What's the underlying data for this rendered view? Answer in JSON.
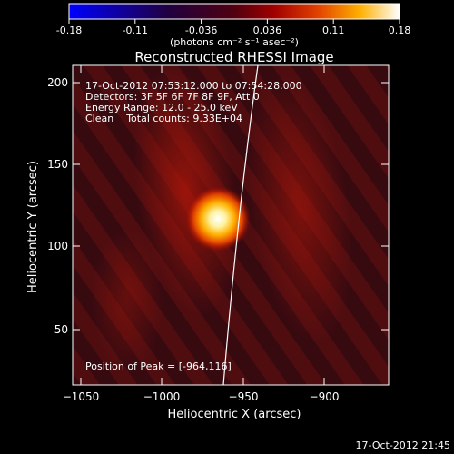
{
  "colorbar": {
    "ticks": [
      "-0.18",
      "-0.11",
      "-0.036",
      "0.036",
      "0.11",
      "0.18"
    ],
    "unit_label": "(photons cm⁻² s⁻¹ asec⁻²)"
  },
  "title": "Reconstructed RHESSI Image",
  "info": {
    "line1": "17-Oct-2012 07:53:12.000 to 07:54:28.000",
    "line2": "Detectors: 3F 5F 6F 7F 8F 9F, Att 0",
    "line3": "Energy Range: 12.0 - 25.0 keV",
    "line4": "Clean    Total counts: 9.33E+04"
  },
  "peak_label": "Position of Peak = [-964,116]",
  "axes": {
    "xlabel": "Heliocentric X (arcsec)",
    "ylabel": "Heliocentric Y (arcsec)",
    "xticks": [
      "−1050",
      "−1000",
      "−950",
      "−900"
    ],
    "yticks": [
      "200",
      "150",
      "100",
      "50"
    ]
  },
  "timestamp": "17-Oct-2012 21:45",
  "colors": {
    "peak": "#ffffff",
    "background": "#000000",
    "limb": "#ffffff"
  }
}
